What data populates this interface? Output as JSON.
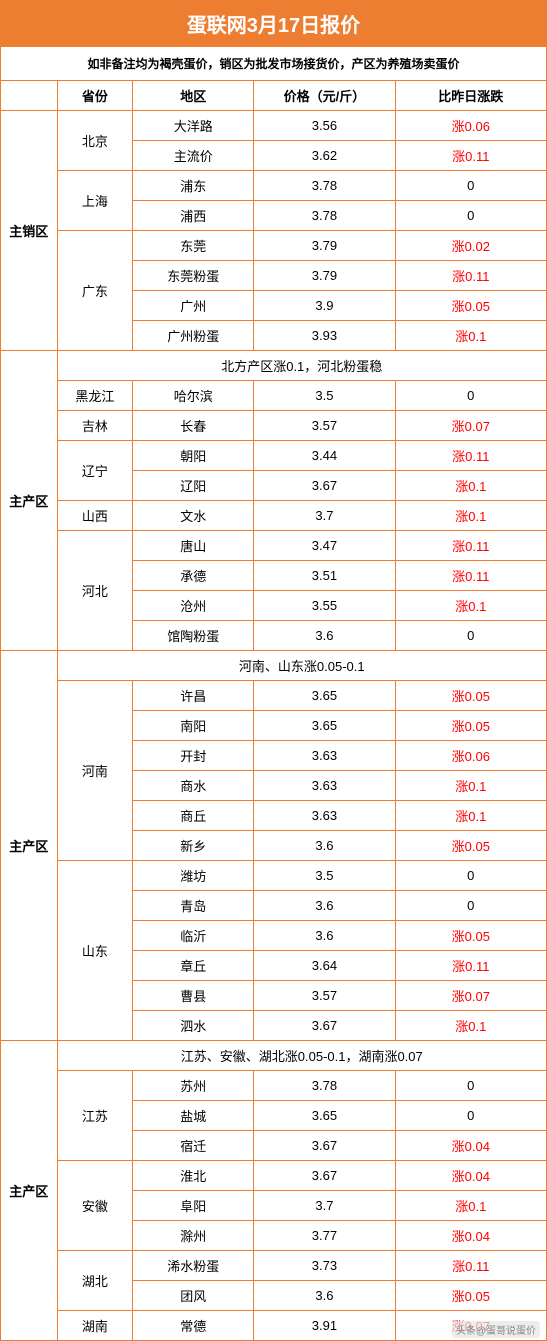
{
  "title": "蛋联网3月17日报价",
  "subtitle": "如非备注均为褐壳蛋价，销区为批发市场接货价，产区为养殖场卖蛋价",
  "headers": {
    "province": "省份",
    "district": "地区",
    "price": "价格（元/斤）",
    "change": "比昨日涨跌"
  },
  "section1": {
    "region": "主销区",
    "rows": [
      {
        "province": "北京",
        "provRowspan": 2,
        "district": "大洋路",
        "price": "3.56",
        "change": "涨0.06",
        "isRed": true
      },
      {
        "district": "主流价",
        "price": "3.62",
        "change": "涨0.11",
        "isRed": true
      },
      {
        "province": "上海",
        "provRowspan": 2,
        "district": "浦东",
        "price": "3.78",
        "change": "0",
        "isRed": false
      },
      {
        "district": "浦西",
        "price": "3.78",
        "change": "0",
        "isRed": false
      },
      {
        "province": "广东",
        "provRowspan": 4,
        "district": "东莞",
        "price": "3.79",
        "change": "涨0.02",
        "isRed": true
      },
      {
        "district": "东莞粉蛋",
        "price": "3.79",
        "change": "涨0.11",
        "isRed": true
      },
      {
        "district": "广州",
        "price": "3.9",
        "change": "涨0.05",
        "isRed": true
      },
      {
        "district": "广州粉蛋",
        "price": "3.93",
        "change": "涨0.1",
        "isRed": true
      }
    ]
  },
  "section2": {
    "region": "主产区",
    "note": "北方产区涨0.1，河北粉蛋稳",
    "rows": [
      {
        "province": "黑龙江",
        "provRowspan": 1,
        "district": "哈尔滨",
        "price": "3.5",
        "change": "0",
        "isRed": false
      },
      {
        "province": "吉林",
        "provRowspan": 1,
        "district": "长春",
        "price": "3.57",
        "change": "涨0.07",
        "isRed": true
      },
      {
        "province": "辽宁",
        "provRowspan": 2,
        "district": "朝阳",
        "price": "3.44",
        "change": "涨0.11",
        "isRed": true
      },
      {
        "district": "辽阳",
        "price": "3.67",
        "change": "涨0.1",
        "isRed": true
      },
      {
        "province": "山西",
        "provRowspan": 1,
        "district": "文水",
        "price": "3.7",
        "change": "涨0.1",
        "isRed": true
      },
      {
        "province": "河北",
        "provRowspan": 4,
        "district": "唐山",
        "price": "3.47",
        "change": "涨0.11",
        "isRed": true
      },
      {
        "district": "承德",
        "price": "3.51",
        "change": "涨0.11",
        "isRed": true
      },
      {
        "district": "沧州",
        "price": "3.55",
        "change": "涨0.1",
        "isRed": true
      },
      {
        "district": "馆陶粉蛋",
        "price": "3.6",
        "change": "0",
        "isRed": false
      }
    ]
  },
  "section3": {
    "region": "主产区",
    "note": "河南、山东涨0.05-0.1",
    "rows": [
      {
        "province": "河南",
        "provRowspan": 6,
        "district": "许昌",
        "price": "3.65",
        "change": "涨0.05",
        "isRed": true
      },
      {
        "district": "南阳",
        "price": "3.65",
        "change": "涨0.05",
        "isRed": true
      },
      {
        "district": "开封",
        "price": "3.63",
        "change": "涨0.06",
        "isRed": true
      },
      {
        "district": "商水",
        "price": "3.63",
        "change": "涨0.1",
        "isRed": true
      },
      {
        "district": "商丘",
        "price": "3.63",
        "change": "涨0.1",
        "isRed": true
      },
      {
        "district": "新乡",
        "price": "3.6",
        "change": "涨0.05",
        "isRed": true
      },
      {
        "province": "山东",
        "provRowspan": 6,
        "district": "潍坊",
        "price": "3.5",
        "change": "0",
        "isRed": false
      },
      {
        "district": "青岛",
        "price": "3.6",
        "change": "0",
        "isRed": false
      },
      {
        "district": "临沂",
        "price": "3.6",
        "change": "涨0.05",
        "isRed": true
      },
      {
        "district": "章丘",
        "price": "3.64",
        "change": "涨0.11",
        "isRed": true
      },
      {
        "district": "曹县",
        "price": "3.57",
        "change": "涨0.07",
        "isRed": true
      },
      {
        "district": "泗水",
        "price": "3.67",
        "change": "涨0.1",
        "isRed": true
      }
    ]
  },
  "section4": {
    "region": "主产区",
    "note": "江苏、安徽、湖北涨0.05-0.1，湖南涨0.07",
    "rows": [
      {
        "province": "江苏",
        "provRowspan": 3,
        "district": "苏州",
        "price": "3.78",
        "change": "0",
        "isRed": false
      },
      {
        "district": "盐城",
        "price": "3.65",
        "change": "0",
        "isRed": false
      },
      {
        "district": "宿迁",
        "price": "3.67",
        "change": "涨0.04",
        "isRed": true
      },
      {
        "province": "安徽",
        "provRowspan": 3,
        "district": "淮北",
        "price": "3.67",
        "change": "涨0.04",
        "isRed": true
      },
      {
        "district": "阜阳",
        "price": "3.7",
        "change": "涨0.1",
        "isRed": true
      },
      {
        "district": "滁州",
        "price": "3.77",
        "change": "涨0.04",
        "isRed": true
      },
      {
        "province": "湖北",
        "provRowspan": 2,
        "district": "浠水粉蛋",
        "price": "3.73",
        "change": "涨0.11",
        "isRed": true
      },
      {
        "district": "团风",
        "price": "3.6",
        "change": "涨0.05",
        "isRed": true
      },
      {
        "province": "湖南",
        "provRowspan": 1,
        "district": "常德",
        "price": "3.91",
        "change": "涨0.07",
        "isRed": true,
        "watermark": true
      }
    ]
  },
  "watermark_text": "头条@蛋哥说蛋价"
}
